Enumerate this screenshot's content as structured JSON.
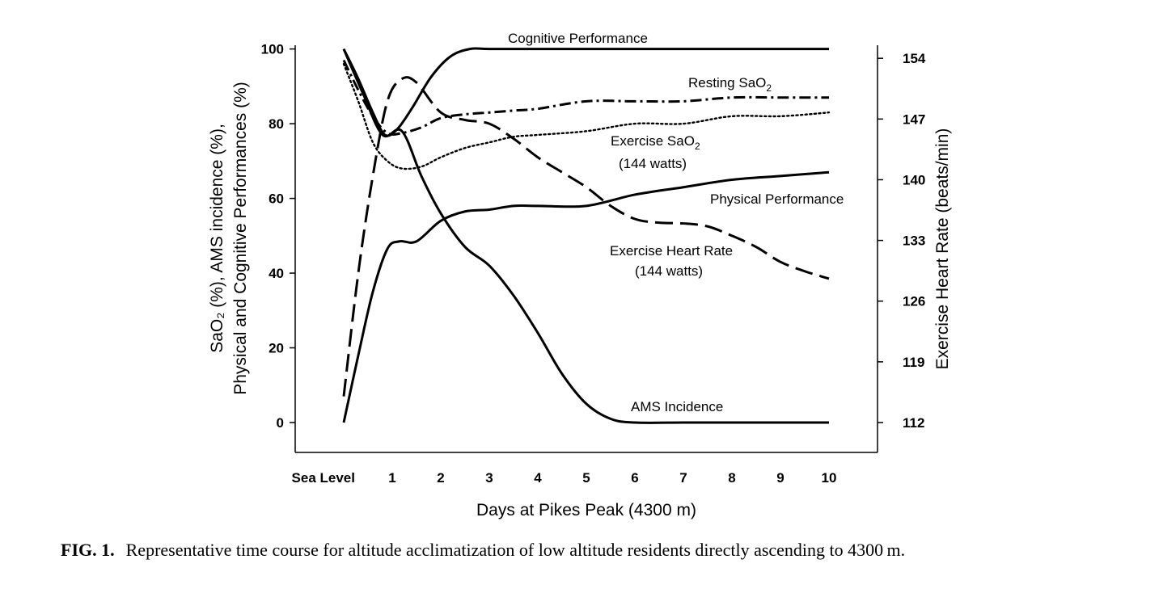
{
  "chart_data": {
    "type": "line",
    "xlabel": "Days at Pikes Peak (4300 m)",
    "ylabel_left_line1": "SaO₂ (%), AMS incidence (%),",
    "ylabel_left_line2": "Physical and Cognitive Performances (%)",
    "ylabel_right": "Exercise Heart Rate (beats/min)",
    "x_ticks": [
      {
        "x": 0,
        "label": "Sea Level"
      },
      {
        "x": 1,
        "label": "1"
      },
      {
        "x": 2,
        "label": "2"
      },
      {
        "x": 3,
        "label": "3"
      },
      {
        "x": 4,
        "label": "4"
      },
      {
        "x": 5,
        "label": "5"
      },
      {
        "x": 6,
        "label": "6"
      },
      {
        "x": 7,
        "label": "7"
      },
      {
        "x": 8,
        "label": "8"
      },
      {
        "x": 9,
        "label": "9"
      },
      {
        "x": 10,
        "label": "10"
      }
    ],
    "xlim": [
      -1,
      11
    ],
    "ylim_left": [
      -8,
      101
    ],
    "y_ticks_left": [
      0,
      20,
      40,
      60,
      80,
      100
    ],
    "y_ticks_right": [
      112,
      119,
      126,
      133,
      140,
      147,
      154
    ],
    "grid": false,
    "series": [
      {
        "name": "Cognitive Performance",
        "style": "solid",
        "points": [
          [
            0,
            100
          ],
          [
            0.3,
            92
          ],
          [
            0.6,
            83
          ],
          [
            0.85,
            77
          ],
          [
            1.1,
            78.5
          ],
          [
            1.4,
            84
          ],
          [
            1.8,
            92.5
          ],
          [
            2.2,
            98
          ],
          [
            2.6,
            100
          ],
          [
            3,
            100
          ],
          [
            4,
            100
          ],
          [
            5,
            100
          ],
          [
            6,
            100
          ],
          [
            7,
            100
          ],
          [
            8,
            100
          ],
          [
            9,
            100
          ],
          [
            10,
            100
          ]
        ]
      },
      {
        "name": "Physical Performance",
        "style": "solid",
        "points": [
          [
            0,
            0
          ],
          [
            0.3,
            18
          ],
          [
            0.6,
            35
          ],
          [
            0.9,
            46.5
          ],
          [
            1.15,
            48.5
          ],
          [
            1.5,
            48.5
          ],
          [
            2,
            54
          ],
          [
            2.5,
            56.5
          ],
          [
            3,
            57
          ],
          [
            3.5,
            58
          ],
          [
            4,
            58
          ],
          [
            5,
            58
          ],
          [
            6,
            61
          ],
          [
            7,
            63
          ],
          [
            8,
            65
          ],
          [
            9,
            66
          ],
          [
            10,
            67
          ]
        ]
      },
      {
        "name": "AMS Incidence",
        "style": "solid",
        "points": [
          [
            0,
            100
          ],
          [
            0.4,
            88
          ],
          [
            0.8,
            77
          ],
          [
            1.2,
            78
          ],
          [
            1.6,
            66
          ],
          [
            2,
            56
          ],
          [
            2.5,
            47
          ],
          [
            3,
            42
          ],
          [
            3.5,
            34
          ],
          [
            4,
            24
          ],
          [
            4.5,
            13
          ],
          [
            5,
            5
          ],
          [
            5.5,
            1
          ],
          [
            6,
            0
          ],
          [
            7,
            0
          ],
          [
            8,
            0
          ],
          [
            9,
            0
          ],
          [
            10,
            0
          ]
        ]
      },
      {
        "name": "Exercise Heart Rate (144 watts)",
        "style": "dashed",
        "points": [
          [
            0,
            7
          ],
          [
            0.3,
            40
          ],
          [
            0.6,
            66
          ],
          [
            0.9,
            86
          ],
          [
            1.2,
            92
          ],
          [
            1.5,
            91
          ],
          [
            2,
            83
          ],
          [
            2.5,
            81
          ],
          [
            3,
            80
          ],
          [
            3.5,
            76
          ],
          [
            4,
            71
          ],
          [
            4.5,
            67
          ],
          [
            5,
            63
          ],
          [
            5.5,
            58
          ],
          [
            6,
            54.5
          ],
          [
            6.5,
            53.5
          ],
          [
            7,
            53.3
          ],
          [
            7.5,
            52.5
          ],
          [
            8,
            50
          ],
          [
            8.5,
            47
          ],
          [
            9,
            43
          ],
          [
            9.5,
            40.5
          ],
          [
            10,
            38.5
          ]
        ]
      },
      {
        "name": "Resting SaO₂",
        "style": "dashdot",
        "points": [
          [
            0,
            97
          ],
          [
            0.3,
            89
          ],
          [
            0.6,
            82
          ],
          [
            0.9,
            77.5
          ],
          [
            1.2,
            77.5
          ],
          [
            1.6,
            79
          ],
          [
            2,
            81.5
          ],
          [
            2.5,
            82.5
          ],
          [
            3,
            83
          ],
          [
            3.5,
            83.5
          ],
          [
            4,
            84
          ],
          [
            5,
            86
          ],
          [
            6,
            86
          ],
          [
            7,
            86
          ],
          [
            8,
            87
          ],
          [
            9,
            87
          ],
          [
            10,
            87
          ]
        ]
      },
      {
        "name": "Exercise SaO₂ (144 watts)",
        "style": "dotted",
        "points": [
          [
            0,
            96
          ],
          [
            0.3,
            86
          ],
          [
            0.6,
            75
          ],
          [
            0.9,
            70
          ],
          [
            1.2,
            68
          ],
          [
            1.6,
            68.5
          ],
          [
            2,
            71
          ],
          [
            2.5,
            73.5
          ],
          [
            3,
            75
          ],
          [
            3.5,
            76.5
          ],
          [
            4,
            77
          ],
          [
            5,
            78
          ],
          [
            6,
            80
          ],
          [
            7,
            80
          ],
          [
            8,
            82
          ],
          [
            9,
            82
          ],
          [
            10,
            83
          ]
        ]
      }
    ],
    "annotations": {
      "cognitive": "Cognitive Performance",
      "resting_sao2": "Resting SaO",
      "exercise_sao2": "Exercise SaO",
      "exercise_sao2_watts": "(144 watts)",
      "physical": "Physical Performance",
      "exercise_hr": "Exercise Heart Rate",
      "exercise_hr_watts": "(144 watts)",
      "ams": "AMS Incidence",
      "subscript_2": "2"
    }
  },
  "caption": {
    "label": "FIG. 1.",
    "text": "Representative time course for altitude acclimatization of low altitude residents directly ascending to 4300 m."
  }
}
